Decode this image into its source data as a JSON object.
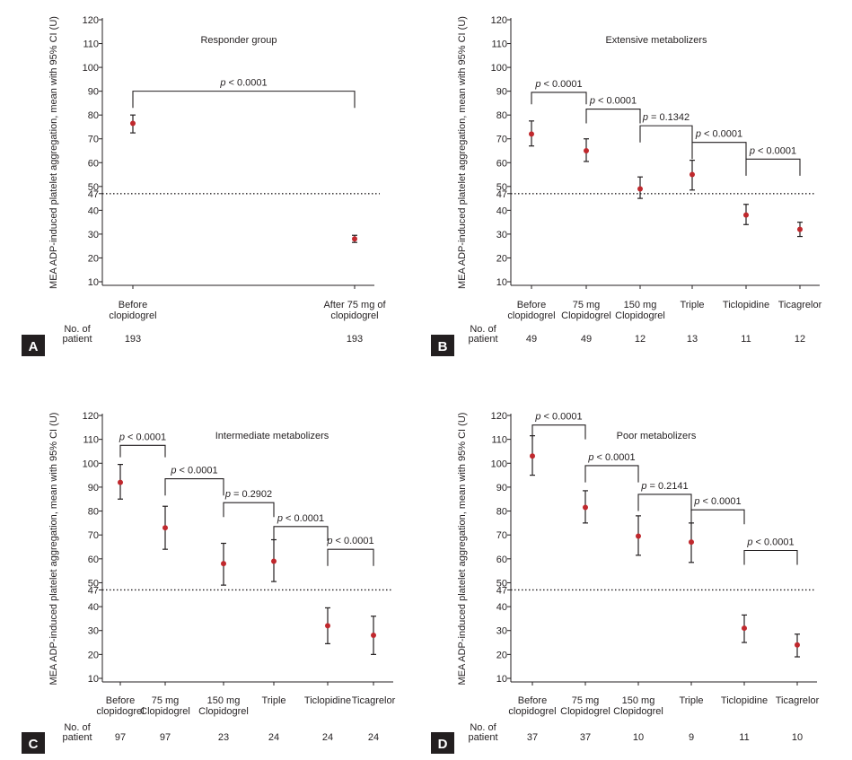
{
  "chart_data": [
    {
      "type": "scatter",
      "panel_label": "A",
      "title": "Responder group",
      "ylabel": "MEA ADP-induced platelet aggregation, mean with 95% CI (U)",
      "ylim": [
        5,
        120
      ],
      "yticks": [
        10,
        20,
        30,
        40,
        50,
        60,
        70,
        80,
        90,
        100,
        110,
        120
      ],
      "threshold": 47,
      "threshold_label": "47",
      "categories": [
        [
          "Before",
          "clopidogrel"
        ],
        [
          "After 75 mg of",
          "clopidogrel"
        ]
      ],
      "points": [
        {
          "mean": 76.5,
          "lower": 72.5,
          "upper": 80
        },
        {
          "mean": 28,
          "lower": 26.5,
          "upper": 29.5
        }
      ],
      "n_label": [
        "No. of",
        "patient"
      ],
      "n": [
        "193",
        "193"
      ],
      "comparisons": [
        {
          "from": 0,
          "to": 1,
          "y": 90,
          "drop": 83,
          "label": "p < 0.0001"
        }
      ]
    },
    {
      "type": "scatter",
      "panel_label": "B",
      "title": "Extensive metabolizers",
      "ylabel": "MEA ADP-induced platelet aggregation, mean with 95% CI (U)",
      "ylim": [
        5,
        120
      ],
      "yticks": [
        10,
        20,
        30,
        40,
        50,
        60,
        70,
        80,
        90,
        100,
        110,
        120
      ],
      "threshold": 47,
      "threshold_label": "47",
      "categories": [
        [
          "Before",
          "clopidogrel"
        ],
        [
          "75 mg",
          "Clopidogrel"
        ],
        [
          "150 mg",
          "Clopidogrel"
        ],
        [
          "Triple"
        ],
        [
          "Ticlopidine"
        ],
        [
          "Ticagrelor"
        ]
      ],
      "points": [
        {
          "mean": 72,
          "lower": 67,
          "upper": 77.5
        },
        {
          "mean": 65,
          "lower": 60.5,
          "upper": 70
        },
        {
          "mean": 49,
          "lower": 45,
          "upper": 54
        },
        {
          "mean": 55,
          "lower": 48.5,
          "upper": 61
        },
        {
          "mean": 38,
          "lower": 34,
          "upper": 42.5
        },
        {
          "mean": 32,
          "lower": 29,
          "upper": 35
        }
      ],
      "n_label": [
        "No. of",
        "patient"
      ],
      "n": [
        "49",
        "49",
        "12",
        "13",
        "11",
        "12"
      ],
      "comparisons": [
        {
          "from": 0,
          "to": 1,
          "y": 89.5,
          "drop": 84.5,
          "label": "p < 0.0001"
        },
        {
          "from": 1,
          "to": 2,
          "y": 82.5,
          "drop": 76.5,
          "label": "p < 0.0001"
        },
        {
          "from": 2,
          "to": 3,
          "y": 75.5,
          "drop": 68.5,
          "label": "p = 0.1342"
        },
        {
          "from": 3,
          "to": 4,
          "y": 68.5,
          "drop": 61.5,
          "label": "p < 0.0001"
        },
        {
          "from": 4,
          "to": 5,
          "y": 61.5,
          "drop": 54.5,
          "label": "p < 0.0001"
        }
      ]
    },
    {
      "type": "scatter",
      "panel_label": "C",
      "title": "Intermediate metabolizers",
      "ylabel": "MEA ADP-induced platelet aggregation, mean with 95% CI (U)",
      "ylim": [
        5,
        120
      ],
      "yticks": [
        10,
        20,
        30,
        40,
        50,
        60,
        70,
        80,
        90,
        100,
        110,
        120
      ],
      "threshold": 47,
      "threshold_label": "47",
      "categories": [
        [
          "Before",
          "clopidogrel"
        ],
        [
          "75 mg",
          "Clopidogrel"
        ],
        [
          "150 mg",
          "Clopidogrel"
        ],
        [
          "Triple"
        ],
        [
          "Ticlopidine"
        ],
        [
          "Ticagrelor"
        ]
      ],
      "points": [
        {
          "mean": 92,
          "lower": 85,
          "upper": 99.5
        },
        {
          "mean": 73,
          "lower": 64,
          "upper": 82
        },
        {
          "mean": 58,
          "lower": 49,
          "upper": 66.5
        },
        {
          "mean": 59,
          "lower": 50.5,
          "upper": 68
        },
        {
          "mean": 32,
          "lower": 24.5,
          "upper": 39.5
        },
        {
          "mean": 28,
          "lower": 20,
          "upper": 36
        }
      ],
      "n_label": [
        "No. of",
        "patient"
      ],
      "n": [
        "97",
        "97",
        "23",
        "24",
        "24",
        "24"
      ],
      "comparisons": [
        {
          "from": 0,
          "to": 1,
          "y": 107.5,
          "drop": 102.5,
          "label": "p < 0.0001"
        },
        {
          "from": 1,
          "to": 2,
          "y": 93.5,
          "drop": 86.5,
          "label": "p < 0.0001"
        },
        {
          "from": 2,
          "to": 3,
          "y": 83.5,
          "drop": 77.5,
          "label": "p = 0.2902"
        },
        {
          "from": 3,
          "to": 4,
          "y": 73.5,
          "drop": 67.5,
          "label": "p < 0.0001"
        },
        {
          "from": 4,
          "to": 5,
          "y": 64,
          "drop": 57,
          "label": "p < 0.0001"
        }
      ]
    },
    {
      "type": "scatter",
      "panel_label": "D",
      "title": "Poor metabolizers",
      "ylabel": "MEA ADP-induced platelet aggregation, mean with 95% CI (U)",
      "ylim": [
        5,
        120
      ],
      "yticks": [
        10,
        20,
        30,
        40,
        50,
        60,
        70,
        80,
        90,
        100,
        110,
        120
      ],
      "threshold": 47,
      "threshold_label": "47",
      "categories": [
        [
          "Before",
          "clopidogrel"
        ],
        [
          "75 mg",
          "Clopidogrel"
        ],
        [
          "150 mg",
          "Clopidogrel"
        ],
        [
          "Triple"
        ],
        [
          "Ticlopidine"
        ],
        [
          "Ticagrelor"
        ]
      ],
      "points": [
        {
          "mean": 103,
          "lower": 95,
          "upper": 111.5
        },
        {
          "mean": 81.5,
          "lower": 75,
          "upper": 88.5
        },
        {
          "mean": 69.5,
          "lower": 61.5,
          "upper": 78
        },
        {
          "mean": 67,
          "lower": 58.5,
          "upper": 75
        },
        {
          "mean": 31,
          "lower": 25,
          "upper": 36.5
        },
        {
          "mean": 24,
          "lower": 19,
          "upper": 28.5
        }
      ],
      "n_label": [
        "No. of",
        "patient"
      ],
      "n": [
        "37",
        "37",
        "10",
        "9",
        "11",
        "10"
      ],
      "comparisons": [
        {
          "from": 0,
          "to": 1,
          "y": 116,
          "drop": 110,
          "label": "p < 0.0001"
        },
        {
          "from": 1,
          "to": 2,
          "y": 99,
          "drop": 92,
          "label": "p < 0.0001"
        },
        {
          "from": 2,
          "to": 3,
          "y": 87,
          "drop": 80,
          "label": "p = 0.2141"
        },
        {
          "from": 3,
          "to": 4,
          "y": 80.5,
          "drop": 74.5,
          "label": "p < 0.0001"
        },
        {
          "from": 4,
          "to": 5,
          "y": 63.5,
          "drop": 57.5,
          "label": "p < 0.0001"
        }
      ]
    }
  ],
  "colors": {
    "point": "#c0282d",
    "ink": "#231f20",
    "badge": "#231f20"
  }
}
